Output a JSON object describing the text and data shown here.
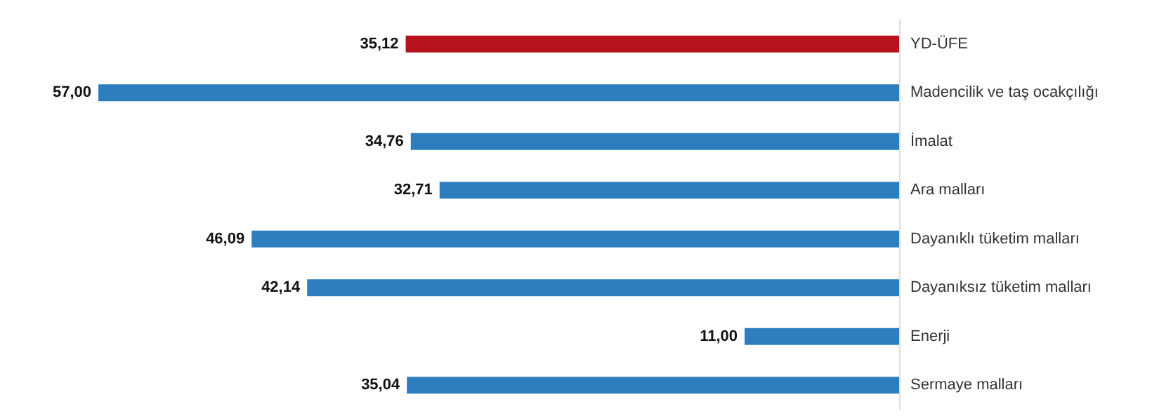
{
  "chart_data": {
    "type": "bar",
    "orientation": "horizontal",
    "categories": [
      "YD-ÜFE",
      "Madencilik ve taş ocakçılığı",
      "İmalat",
      "Ara malları",
      "Dayanıklı tüketim malları",
      "Dayanıksız tüketim malları",
      "Enerji",
      "Sermaye malları"
    ],
    "values": [
      35.12,
      57.0,
      34.76,
      32.71,
      46.09,
      42.14,
      11.0,
      35.04
    ],
    "colors": [
      "#b5121b",
      "#2e7dbf",
      "#2e7dbf",
      "#2e7dbf",
      "#2e7dbf",
      "#2e7dbf",
      "#2e7dbf",
      "#2e7dbf"
    ],
    "value_labels": [
      "35,12",
      "57,00",
      "34,76",
      "32,71",
      "46,09",
      "42,14",
      "11,00",
      "35,04"
    ]
  }
}
